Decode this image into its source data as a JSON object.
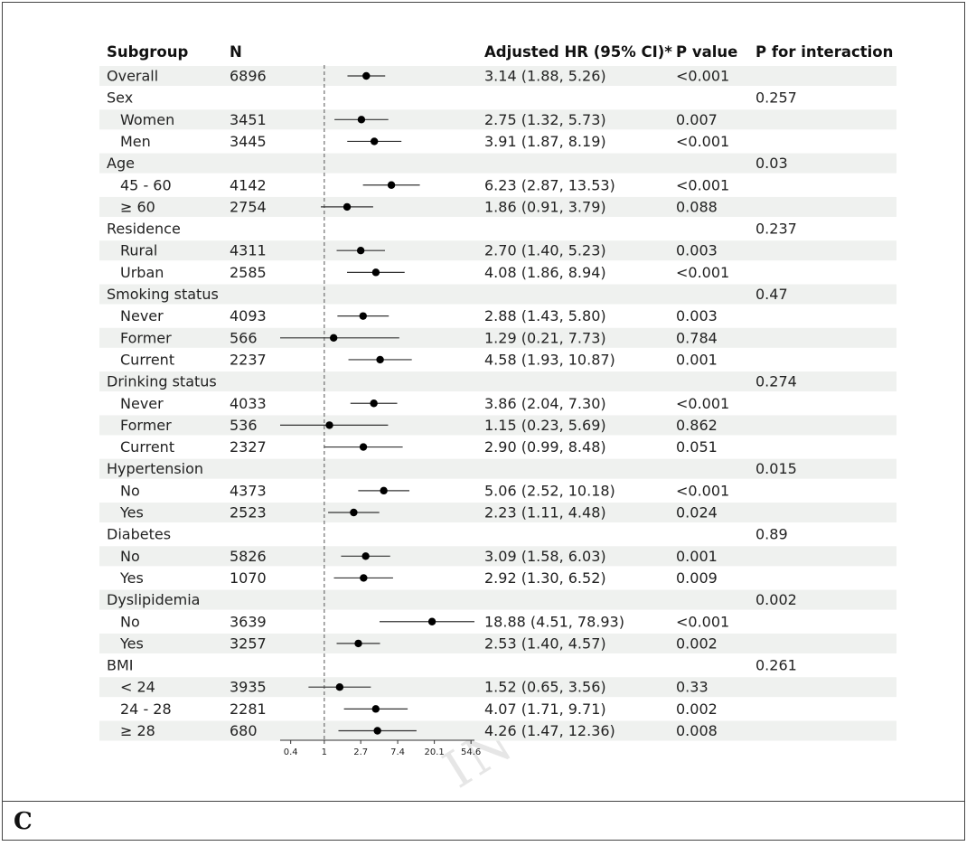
{
  "panel_label": "C",
  "watermark": "IN .",
  "chart_data": {
    "type": "forest",
    "columns": {
      "subgroup": "Subgroup",
      "n": "N",
      "hr": "Adjusted HR (95% CI)*",
      "p": "P value",
      "p_interaction": "P for interaction"
    },
    "x_scale": "log",
    "reference_line": 1,
    "xlim": [
      0.3,
      60
    ],
    "x_ticks": [
      0.4,
      1,
      2.7,
      7.4,
      20.1,
      54.6
    ],
    "x_tick_labels": [
      "0.4",
      "1",
      "2.7",
      "7.4",
      "20.1",
      "54.6"
    ],
    "rows": [
      {
        "label": "Overall",
        "indent": false,
        "n": "6896",
        "hr_text": "3.14 (1.88, 5.26)",
        "p": "<0.001",
        "p_int": "",
        "hr": 3.14,
        "lo": 1.88,
        "hi": 5.26
      },
      {
        "label": "Sex",
        "indent": false,
        "n": "",
        "hr_text": "",
        "p": "",
        "p_int": "0.257"
      },
      {
        "label": "Women",
        "indent": true,
        "n": "3451",
        "hr_text": "2.75 (1.32, 5.73)",
        "p": "0.007",
        "p_int": "",
        "hr": 2.75,
        "lo": 1.32,
        "hi": 5.73
      },
      {
        "label": "Men",
        "indent": true,
        "n": "3445",
        "hr_text": "3.91 (1.87, 8.19)",
        "p": "<0.001",
        "p_int": "",
        "hr": 3.91,
        "lo": 1.87,
        "hi": 8.19
      },
      {
        "label": "Age",
        "indent": false,
        "n": "",
        "hr_text": "",
        "p": "",
        "p_int": "0.03"
      },
      {
        "label": "45 - 60",
        "indent": true,
        "n": "4142",
        "hr_text": "6.23 (2.87, 13.53)",
        "p": "<0.001",
        "p_int": "",
        "hr": 6.23,
        "lo": 2.87,
        "hi": 13.53
      },
      {
        "label": "≥ 60",
        "indent": true,
        "n": "2754",
        "hr_text": "1.86 (0.91, 3.79)",
        "p": "0.088",
        "p_int": "",
        "hr": 1.86,
        "lo": 0.91,
        "hi": 3.79
      },
      {
        "label": "Residence",
        "indent": false,
        "n": "",
        "hr_text": "",
        "p": "",
        "p_int": "0.237"
      },
      {
        "label": "Rural",
        "indent": true,
        "n": "4311",
        "hr_text": "2.70 (1.40, 5.23)",
        "p": "0.003",
        "p_int": "",
        "hr": 2.7,
        "lo": 1.4,
        "hi": 5.23
      },
      {
        "label": "Urban",
        "indent": true,
        "n": "2585",
        "hr_text": "4.08 (1.86, 8.94)",
        "p": "<0.001",
        "p_int": "",
        "hr": 4.08,
        "lo": 1.86,
        "hi": 8.94
      },
      {
        "label": "Smoking status",
        "indent": false,
        "n": "",
        "hr_text": "",
        "p": "",
        "p_int": "0.47"
      },
      {
        "label": "Never",
        "indent": true,
        "n": "4093",
        "hr_text": "2.88 (1.43, 5.80)",
        "p": "0.003",
        "p_int": "",
        "hr": 2.88,
        "lo": 1.43,
        "hi": 5.8
      },
      {
        "label": "Former",
        "indent": true,
        "n": "566",
        "hr_text": "1.29 (0.21, 7.73)",
        "p": "0.784",
        "p_int": "",
        "hr": 1.29,
        "lo": 0.21,
        "hi": 7.73
      },
      {
        "label": "Current",
        "indent": true,
        "n": "2237",
        "hr_text": "4.58 (1.93, 10.87)",
        "p": "0.001",
        "p_int": "",
        "hr": 4.58,
        "lo": 1.93,
        "hi": 10.87
      },
      {
        "label": "Drinking status",
        "indent": false,
        "n": "",
        "hr_text": "",
        "p": "",
        "p_int": "0.274"
      },
      {
        "label": "Never",
        "indent": true,
        "n": "4033",
        "hr_text": "3.86 (2.04, 7.30)",
        "p": "<0.001",
        "p_int": "",
        "hr": 3.86,
        "lo": 2.04,
        "hi": 7.3
      },
      {
        "label": "Former",
        "indent": true,
        "n": "536",
        "hr_text": "1.15 (0.23, 5.69)",
        "p": "0.862",
        "p_int": "",
        "hr": 1.15,
        "lo": 0.23,
        "hi": 5.69
      },
      {
        "label": "Current",
        "indent": true,
        "n": "2327",
        "hr_text": "2.90 (0.99, 8.48)",
        "p": "0.051",
        "p_int": "",
        "hr": 2.9,
        "lo": 0.99,
        "hi": 8.48
      },
      {
        "label": "Hypertension",
        "indent": false,
        "n": "",
        "hr_text": "",
        "p": "",
        "p_int": "0.015"
      },
      {
        "label": "No",
        "indent": true,
        "n": "4373",
        "hr_text": "5.06 (2.52, 10.18)",
        "p": "<0.001",
        "p_int": "",
        "hr": 5.06,
        "lo": 2.52,
        "hi": 10.18
      },
      {
        "label": "Yes",
        "indent": true,
        "n": "2523",
        "hr_text": "2.23 (1.11, 4.48)",
        "p": "0.024",
        "p_int": "",
        "hr": 2.23,
        "lo": 1.11,
        "hi": 4.48
      },
      {
        "label": "Diabetes",
        "indent": false,
        "n": "",
        "hr_text": "",
        "p": "",
        "p_int": "0.89"
      },
      {
        "label": "No",
        "indent": true,
        "n": "5826",
        "hr_text": "3.09 (1.58, 6.03)",
        "p": "0.001",
        "p_int": "",
        "hr": 3.09,
        "lo": 1.58,
        "hi": 6.03
      },
      {
        "label": "Yes",
        "indent": true,
        "n": "1070",
        "hr_text": "2.92 (1.30, 6.52)",
        "p": "0.009",
        "p_int": "",
        "hr": 2.92,
        "lo": 1.3,
        "hi": 6.52
      },
      {
        "label": "Dyslipidemia",
        "indent": false,
        "n": "",
        "hr_text": "",
        "p": "",
        "p_int": "0.002"
      },
      {
        "label": "No",
        "indent": true,
        "n": "3639",
        "hr_text": "18.88 (4.51, 78.93)",
        "p": "<0.001",
        "p_int": "",
        "hr": 18.88,
        "lo": 4.51,
        "hi": 78.93
      },
      {
        "label": "Yes",
        "indent": true,
        "n": "3257",
        "hr_text": "2.53 (1.40, 4.57)",
        "p": "0.002",
        "p_int": "",
        "hr": 2.53,
        "lo": 1.4,
        "hi": 4.57
      },
      {
        "label": "BMI",
        "indent": false,
        "n": "",
        "hr_text": "",
        "p": "",
        "p_int": "0.261"
      },
      {
        "label": "< 24",
        "indent": true,
        "n": "3935",
        "hr_text": "1.52 (0.65, 3.56)",
        "p": "0.33",
        "p_int": "",
        "hr": 1.52,
        "lo": 0.65,
        "hi": 3.56
      },
      {
        "label": "24 - 28",
        "indent": true,
        "n": "2281",
        "hr_text": "4.07 (1.71, 9.71)",
        "p": "0.002",
        "p_int": "",
        "hr": 4.07,
        "lo": 1.71,
        "hi": 9.71
      },
      {
        "label": "≥ 28",
        "indent": true,
        "n": "680",
        "hr_text": "4.26 (1.47, 12.36)",
        "p": "0.008",
        "p_int": "",
        "hr": 4.26,
        "lo": 1.47,
        "hi": 12.36
      }
    ],
    "colors": {
      "stripe": "#eff1ef",
      "marker": "#000000",
      "refline": "#555555"
    }
  }
}
